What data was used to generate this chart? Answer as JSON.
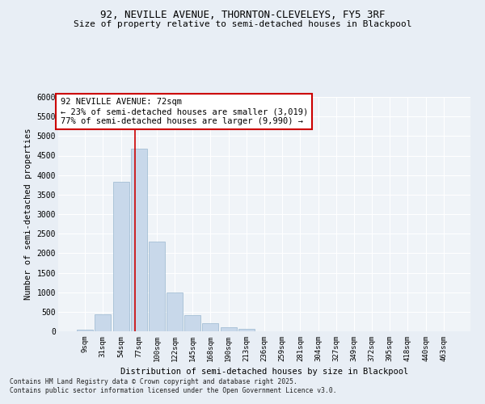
{
  "title_line1": "92, NEVILLE AVENUE, THORNTON-CLEVELEYS, FY5 3RF",
  "title_line2": "Size of property relative to semi-detached houses in Blackpool",
  "xlabel": "Distribution of semi-detached houses by size in Blackpool",
  "ylabel": "Number of semi-detached properties",
  "bar_labels": [
    "9sqm",
    "31sqm",
    "54sqm",
    "77sqm",
    "100sqm",
    "122sqm",
    "145sqm",
    "168sqm",
    "190sqm",
    "213sqm",
    "236sqm",
    "259sqm",
    "281sqm",
    "304sqm",
    "327sqm",
    "349sqm",
    "372sqm",
    "395sqm",
    "418sqm",
    "440sqm",
    "463sqm"
  ],
  "bar_values": [
    50,
    430,
    3820,
    4670,
    2300,
    1000,
    420,
    200,
    95,
    70,
    0,
    0,
    0,
    0,
    0,
    0,
    0,
    0,
    0,
    0,
    0
  ],
  "bar_color": "#c8d8ea",
  "bar_edgecolor": "#9ab8d0",
  "ylim": [
    0,
    6000
  ],
  "yticks": [
    0,
    500,
    1000,
    1500,
    2000,
    2500,
    3000,
    3500,
    4000,
    4500,
    5000,
    5500,
    6000
  ],
  "vline_x": 2.77,
  "vline_color": "#cc0000",
  "annotation_text": "92 NEVILLE AVENUE: 72sqm\n← 23% of semi-detached houses are smaller (3,019)\n77% of semi-detached houses are larger (9,990) →",
  "annotation_box_color": "#cc0000",
  "footer_text": "Contains HM Land Registry data © Crown copyright and database right 2025.\nContains public sector information licensed under the Open Government Licence v3.0.",
  "bg_color": "#e8eef5",
  "plot_bg_color": "#f0f4f8",
  "grid_color": "#ffffff"
}
